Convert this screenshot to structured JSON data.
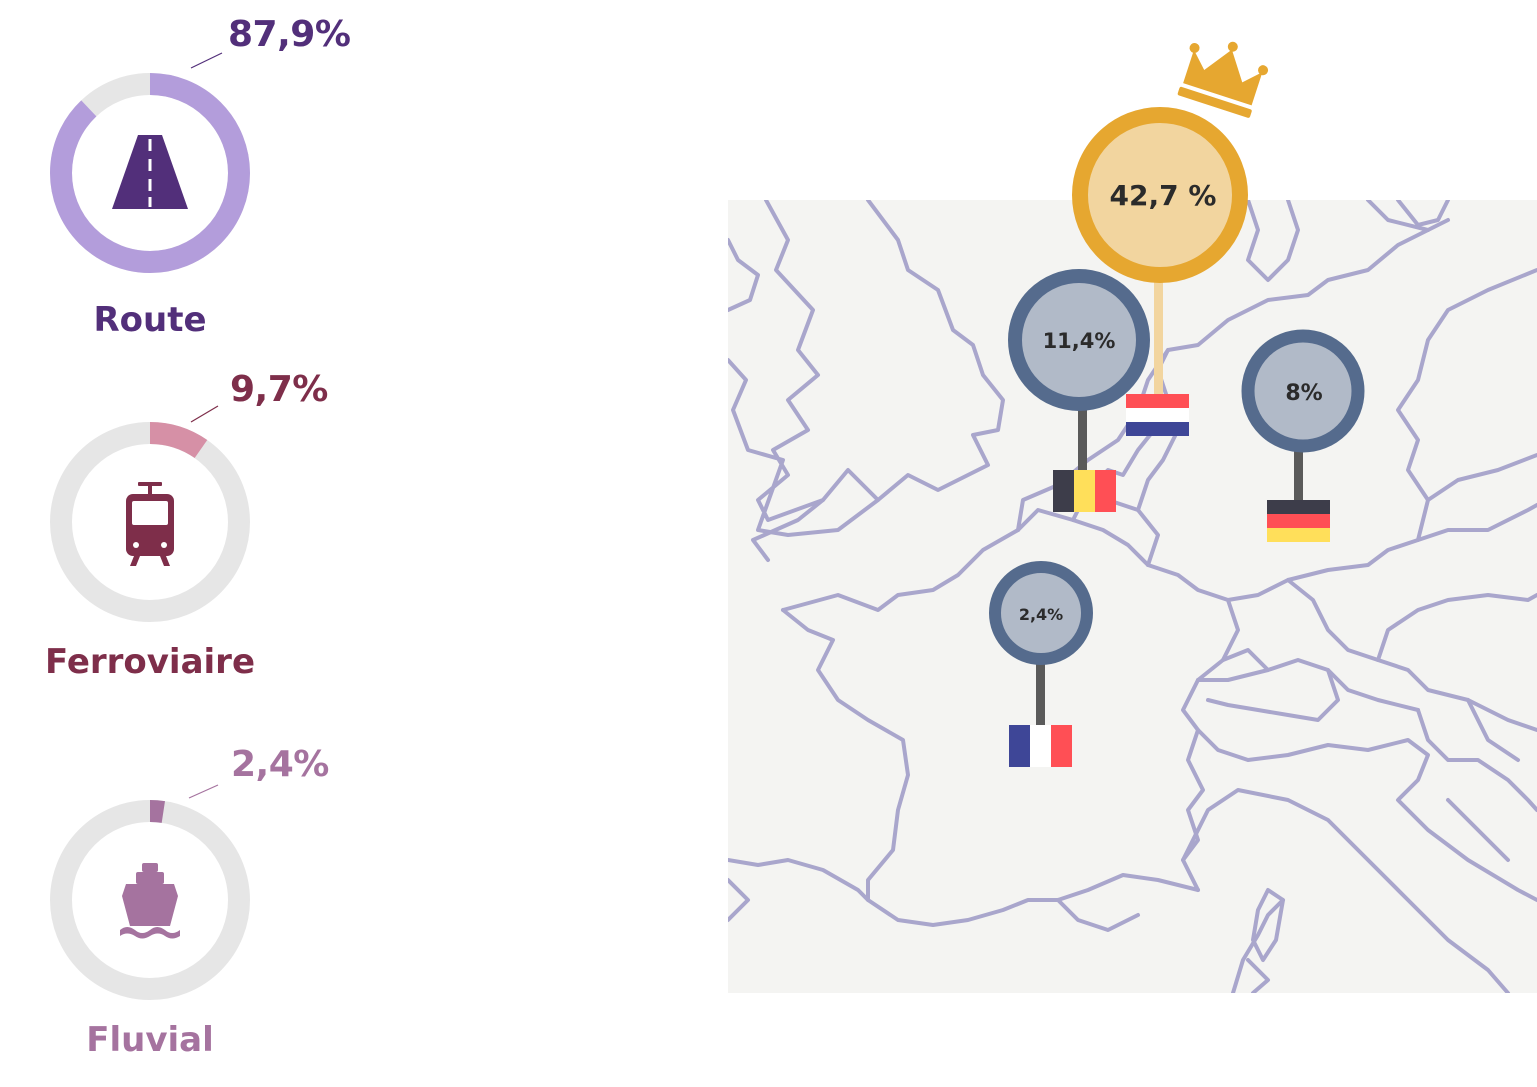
{
  "modes": [
    {
      "key": "route",
      "label": "Route",
      "percent_text": "87,9%",
      "share": 0.879,
      "color": "#522f7a",
      "ring_color": "#b39ddb",
      "icon": "road-icon"
    },
    {
      "key": "ferroviaire",
      "label": "Ferroviaire",
      "percent_text": "9,7%",
      "share": 0.097,
      "color": "#7e2e4a",
      "ring_color": "#d690a6",
      "icon": "tram-icon"
    },
    {
      "key": "fluvial",
      "label": "Fluvial",
      "percent_text": "2,4%",
      "share": 0.024,
      "color": "#a5739f",
      "ring_color": "#a5739f",
      "icon": "ship-icon"
    }
  ],
  "ring_track_color": "#e6e6e6",
  "countries": [
    {
      "key": "netherlands",
      "share_text": "42,7 %",
      "flag": "netherlands-flag-icon",
      "leader": true,
      "badge": "crown-icon"
    },
    {
      "key": "belgium",
      "share_text": "11,4%",
      "flag": "belgium-flag-icon"
    },
    {
      "key": "germany",
      "share_text": "8%",
      "flag": "germany-flag-icon"
    },
    {
      "key": "france",
      "share_text": "2,4%",
      "flag": "france-flag-icon"
    }
  ],
  "colors": {
    "leader_ring": "#e6a730",
    "leader_fill": "#f2d59f",
    "pin_ring": "#556b8d",
    "pin_fill": "#b1bac8",
    "border_line": "#a9a6cc",
    "land": "#f4f4f2"
  }
}
